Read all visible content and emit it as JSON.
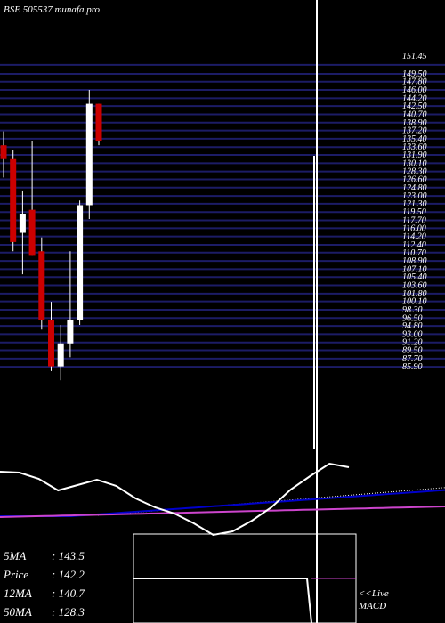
{
  "header": {
    "title": "BSE 505537 munafa.pro"
  },
  "stats": [
    {
      "label": "5MA",
      "value": "143.5"
    },
    {
      "label": "Price",
      "value": "142.2"
    },
    {
      "label": "12MA",
      "value": "140.7"
    },
    {
      "label": "50MA",
      "value": "128.3"
    }
  ],
  "macd_label": {
    "line1": "<<Live",
    "line2": "MACD"
  },
  "chart_data": {
    "type": "candlestick",
    "price_axis": {
      "min": 84,
      "max": 152,
      "top_label": "151.45",
      "ticks": [
        151.45,
        149.5,
        147.8,
        146.0,
        144.2,
        142.5,
        140.7,
        138.9,
        137.2,
        135.4,
        133.6,
        131.9,
        130.1,
        128.3,
        126.6,
        124.8,
        123.0,
        121.3,
        119.5,
        117.7,
        116.0,
        114.2,
        112.4,
        110.7,
        108.9,
        107.1,
        105.4,
        103.6,
        101.8,
        100.1,
        98.3,
        96.5,
        94.8,
        93.0,
        91.2,
        89.5,
        87.7,
        85.9
      ]
    },
    "candles": [
      {
        "open": 134.0,
        "high": 137.0,
        "low": 127.0,
        "close": 131.0,
        "color": "red"
      },
      {
        "open": 131.0,
        "high": 133.0,
        "low": 111.0,
        "close": 113.0,
        "color": "red"
      },
      {
        "open": 115.0,
        "high": 124.0,
        "low": 106.0,
        "close": 119.0,
        "color": "white"
      },
      {
        "open": 120.0,
        "high": 135.0,
        "low": 110.0,
        "close": 110.0,
        "color": "red"
      },
      {
        "open": 111.0,
        "high": 114.0,
        "low": 94.0,
        "close": 96.0,
        "color": "red"
      },
      {
        "open": 96.0,
        "high": 100.0,
        "low": 85.0,
        "close": 86.0,
        "color": "red"
      },
      {
        "open": 86.0,
        "high": 95.0,
        "low": 83.0,
        "close": 91.0,
        "color": "white"
      },
      {
        "open": 91.0,
        "high": 111.0,
        "low": 88.0,
        "close": 96.0,
        "color": "white"
      },
      {
        "open": 96.0,
        "high": 122.0,
        "low": 95.0,
        "close": 121.0,
        "color": "white"
      },
      {
        "open": 121.0,
        "high": 146.0,
        "low": 118.0,
        "close": 143.0,
        "color": "white"
      },
      {
        "open": 143.0,
        "high": 143.0,
        "low": 134.0,
        "close": 135.0,
        "color": "red"
      }
    ],
    "indicator": {
      "white_line": [
        75,
        74,
        67,
        54,
        60,
        66,
        59,
        45,
        35,
        28,
        17,
        4,
        8,
        20,
        35,
        55,
        70,
        84,
        80
      ],
      "blue_line_range": [
        0,
        100
      ],
      "white_line_range": [
        0,
        100
      ]
    },
    "colors": {
      "grid": "#1c1c66",
      "candle_up": "#ffffff",
      "candle_down": "#cc0000",
      "ma_blue": "#0000cc",
      "ma_magenta": "#cc44cc",
      "background": "#000000"
    },
    "grid": true
  }
}
